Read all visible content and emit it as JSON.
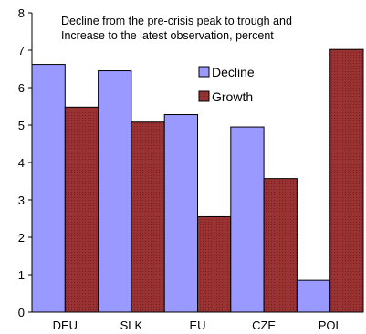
{
  "chart_data": {
    "type": "bar",
    "title_lines": [
      "Decline from the pre-crisis peak to trough and",
      "Increase to the latest observation, percent"
    ],
    "categories": [
      "DEU",
      "SLK",
      "EU",
      "CZE",
      "POL"
    ],
    "series": [
      {
        "name": "Decline",
        "values": [
          6.62,
          6.45,
          5.28,
          4.95,
          0.85
        ],
        "color": "#9999ff"
      },
      {
        "name": "Growth",
        "values": [
          5.48,
          5.08,
          2.55,
          3.57,
          7.02
        ],
        "color": "#993333"
      }
    ],
    "ylim": [
      0,
      8
    ],
    "yticks": [
      "0",
      "1",
      "2",
      "3",
      "4",
      "5",
      "6",
      "7",
      "8"
    ],
    "grid": false,
    "legend_position": "top-center"
  }
}
